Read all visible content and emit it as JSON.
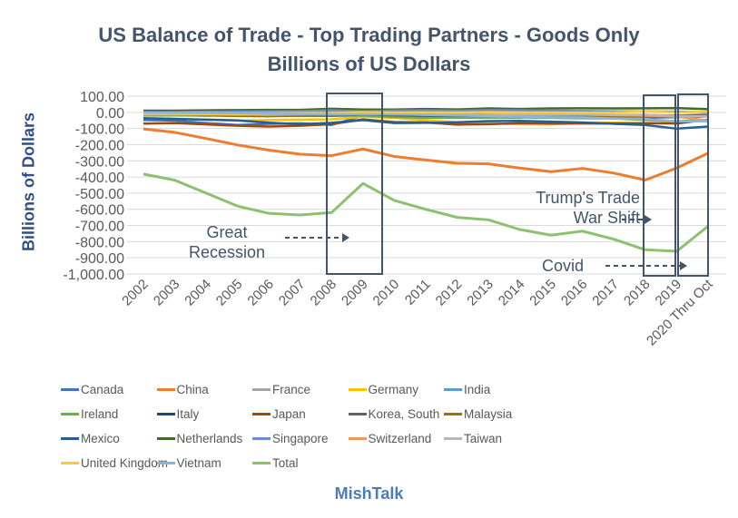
{
  "chart_data": {
    "type": "line",
    "title": "US Balance of Trade - Top Trading Partners - Goods Only",
    "subtitle": "Billions of US Dollars",
    "ylabel": "Billions of Dollars",
    "ylim": [
      -1000,
      100
    ],
    "yticks": [
      "100.00",
      "0.00",
      "-100.00",
      "-200.00",
      "-300.00",
      "-400.00",
      "-500.00",
      "-600.00",
      "-700.00",
      "-800.00",
      "-900.00",
      "-1,000.00"
    ],
    "grid": true,
    "legend": "bottom",
    "categories": [
      "2002",
      "2003",
      "2004",
      "2005",
      "2006",
      "2007",
      "2008",
      "2009",
      "2010",
      "2011",
      "2012",
      "2013",
      "2014",
      "2015",
      "2016",
      "2017",
      "2018",
      "2019",
      "2020 Thru Oct"
    ],
    "series": [
      {
        "name": "Canada",
        "color": "#4472c4",
        "values": [
          -48,
          -51,
          -66,
          -78,
          -71,
          -68,
          -78,
          -21,
          -29,
          -35,
          -32,
          -32,
          -34,
          -15,
          -11,
          -17,
          -19,
          -27,
          -10
        ]
      },
      {
        "name": "China",
        "color": "#ed7d31",
        "values": [
          -103,
          -124,
          -162,
          -202,
          -234,
          -259,
          -268,
          -227,
          -273,
          -295,
          -315,
          -319,
          -345,
          -367,
          -347,
          -376,
          -419,
          -345,
          -253
        ]
      },
      {
        "name": "France",
        "color": "#a5a5a5",
        "values": [
          -8,
          -12,
          -11,
          -11,
          -13,
          -15,
          -15,
          -10,
          -12,
          -13,
          -16,
          -15,
          -18,
          -16,
          -16,
          -16,
          -16,
          -21,
          -10
        ]
      },
      {
        "name": "Germany",
        "color": "#ffc000",
        "values": [
          -36,
          -39,
          -46,
          -51,
          -48,
          -45,
          -43,
          -28,
          -34,
          -50,
          -60,
          -67,
          -74,
          -75,
          -65,
          -64,
          -68,
          -67,
          -48
        ]
      },
      {
        "name": "India",
        "color": "#5b9bd5",
        "values": [
          -6,
          -7,
          -8,
          -11,
          -12,
          -12,
          -8,
          -6,
          -10,
          -14,
          -18,
          -20,
          -24,
          -23,
          -24,
          -23,
          -21,
          -23,
          -20
        ]
      },
      {
        "name": "Ireland",
        "color": "#70ad47",
        "values": [
          -20,
          -19,
          -20,
          -21,
          -21,
          -21,
          -21,
          -21,
          -29,
          -33,
          -33,
          -33,
          -32,
          -35,
          -37,
          -38,
          -47,
          -55,
          -47
        ]
      },
      {
        "name": "Italy",
        "color": "#264478",
        "values": [
          -14,
          -15,
          -17,
          -19,
          -20,
          -21,
          -21,
          -14,
          -18,
          -20,
          -21,
          -23,
          -27,
          -28,
          -28,
          -32,
          -32,
          -30,
          -25
        ]
      },
      {
        "name": "Japan",
        "color": "#9e480e",
        "values": [
          -70,
          -66,
          -75,
          -83,
          -88,
          -83,
          -73,
          -44,
          -60,
          -63,
          -76,
          -73,
          -67,
          -69,
          -69,
          -69,
          -67,
          -69,
          -45
        ]
      },
      {
        "name": "Korea, South",
        "color": "#636363",
        "values": [
          -13,
          -13,
          -20,
          -16,
          -13,
          -13,
          -13,
          -11,
          -10,
          -13,
          -17,
          -21,
          -25,
          -28,
          -28,
          -23,
          -18,
          -20,
          -20
        ]
      },
      {
        "name": "Malaysia",
        "color": "#997300",
        "values": [
          -14,
          -15,
          -18,
          -23,
          -24,
          -21,
          -18,
          -13,
          -14,
          -12,
          -13,
          -14,
          -17,
          -24,
          -25,
          -25,
          -27,
          -27,
          -25
        ]
      },
      {
        "name": "Mexico",
        "color": "#255e91",
        "values": [
          -37,
          -41,
          -45,
          -50,
          -64,
          -74,
          -65,
          -48,
          -66,
          -65,
          -62,
          -54,
          -53,
          -58,
          -63,
          -71,
          -78,
          -101,
          -88
        ]
      },
      {
        "name": "Netherlands",
        "color": "#43682b",
        "values": [
          10,
          10,
          12,
          14,
          15,
          15,
          22,
          17,
          17,
          21,
          18,
          24,
          21,
          24,
          25,
          24,
          25,
          26,
          20
        ]
      },
      {
        "name": "Singapore",
        "color": "#698ed0",
        "values": [
          2,
          1,
          4,
          5,
          6,
          7,
          12,
          6,
          11,
          12,
          10,
          14,
          12,
          10,
          8,
          6,
          6,
          4,
          2
        ]
      },
      {
        "name": "Switzerland",
        "color": "#f1975a",
        "values": [
          -4,
          -1,
          -1,
          -3,
          -1,
          0,
          -1,
          1,
          -1,
          0,
          -2,
          2,
          -3,
          -12,
          -13,
          -17,
          -21,
          -27,
          -50
        ]
      },
      {
        "name": "Taiwan",
        "color": "#b7b7b7",
        "values": [
          -14,
          -14,
          -13,
          -13,
          -15,
          -12,
          -11,
          -10,
          -10,
          -15,
          -15,
          -15,
          -15,
          -15,
          -13,
          -17,
          -15,
          -23,
          -25
        ]
      },
      {
        "name": "United Kingdom",
        "color": "#ffcd33",
        "values": [
          -7,
          -9,
          -10,
          -13,
          -8,
          -6,
          -5,
          1,
          -2,
          -1,
          -1,
          1,
          -1,
          -1,
          -2,
          -1,
          5,
          -1,
          5
        ]
      },
      {
        "name": "Vietnam",
        "color": "#8cb4e2",
        "values": [
          -2,
          -3,
          -4,
          -6,
          -7,
          -10,
          -12,
          -12,
          -13,
          -16,
          -19,
          -24,
          -29,
          -31,
          -32,
          -38,
          -40,
          -56,
          -55
        ]
      },
      {
        "name": "Total",
        "color": "#8bc170",
        "values": [
          -382,
          -420,
          -500,
          -580,
          -625,
          -635,
          -620,
          -440,
          -545,
          -600,
          -650,
          -665,
          -725,
          -760,
          -735,
          -785,
          -850,
          -860,
          -705
        ]
      }
    ],
    "annotations": [
      {
        "text": "Great Recession",
        "lines": [
          "Great",
          "Recession"
        ]
      },
      {
        "text": "Trump's Trade War Shift",
        "lines": [
          "Trump's Trade",
          "War Shift"
        ]
      },
      {
        "text": "Covid",
        "lines": [
          "Covid"
        ]
      }
    ]
  },
  "footer": "MishTalk"
}
